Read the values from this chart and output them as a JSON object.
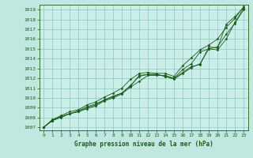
{
  "xlabel": "Graphe pression niveau de la mer (hPa)",
  "xlim": [
    -0.5,
    23.5
  ],
  "ylim": [
    1006.7,
    1019.5
  ],
  "yticks": [
    1007,
    1008,
    1009,
    1010,
    1011,
    1012,
    1013,
    1014,
    1015,
    1016,
    1017,
    1018,
    1019
  ],
  "xticks": [
    0,
    1,
    2,
    3,
    4,
    5,
    6,
    7,
    8,
    9,
    10,
    11,
    12,
    13,
    14,
    15,
    16,
    17,
    18,
    19,
    20,
    21,
    22,
    23
  ],
  "bg_color": "#c0e8e0",
  "plot_bg": "#cceee8",
  "grid_color": "#88c8c0",
  "line_color": "#1a5c1a",
  "text_color": "#1a5c1a",
  "series": [
    [
      1007.0,
      1007.7,
      1008.1,
      1008.4,
      1008.7,
      1009.1,
      1009.4,
      1009.8,
      1010.2,
      1010.5,
      1011.1,
      1011.7,
      1012.3,
      1012.3,
      1012.3,
      1012.0,
      1012.6,
      1013.2,
      1013.4,
      1015.2,
      1015.1,
      1017.5,
      1018.3,
      1019.2
    ],
    [
      1007.0,
      1007.7,
      1008.1,
      1008.4,
      1008.6,
      1009.0,
      1009.3,
      1009.8,
      1010.1,
      1010.5,
      1011.3,
      1012.2,
      1012.4,
      1012.4,
      1012.2,
      1012.0,
      1012.9,
      1013.5,
      1014.7,
      1015.0,
      1014.9,
      1016.0,
      1017.7,
      1019.1
    ],
    [
      1007.0,
      1007.7,
      1008.0,
      1008.4,
      1008.6,
      1008.9,
      1009.2,
      1009.7,
      1010.0,
      1010.4,
      1011.2,
      1012.3,
      1012.4,
      1012.4,
      1012.2,
      1011.9,
      1012.5,
      1013.1,
      1013.5,
      1015.0,
      1015.2,
      1016.5,
      1017.6,
      1019.0
    ],
    [
      1007.0,
      1007.8,
      1008.2,
      1008.6,
      1008.8,
      1009.3,
      1009.6,
      1010.1,
      1010.5,
      1011.0,
      1011.9,
      1012.5,
      1012.6,
      1012.5,
      1012.5,
      1012.2,
      1013.3,
      1014.1,
      1014.9,
      1015.4,
      1016.0,
      1017.2,
      1018.1,
      1019.3
    ]
  ]
}
